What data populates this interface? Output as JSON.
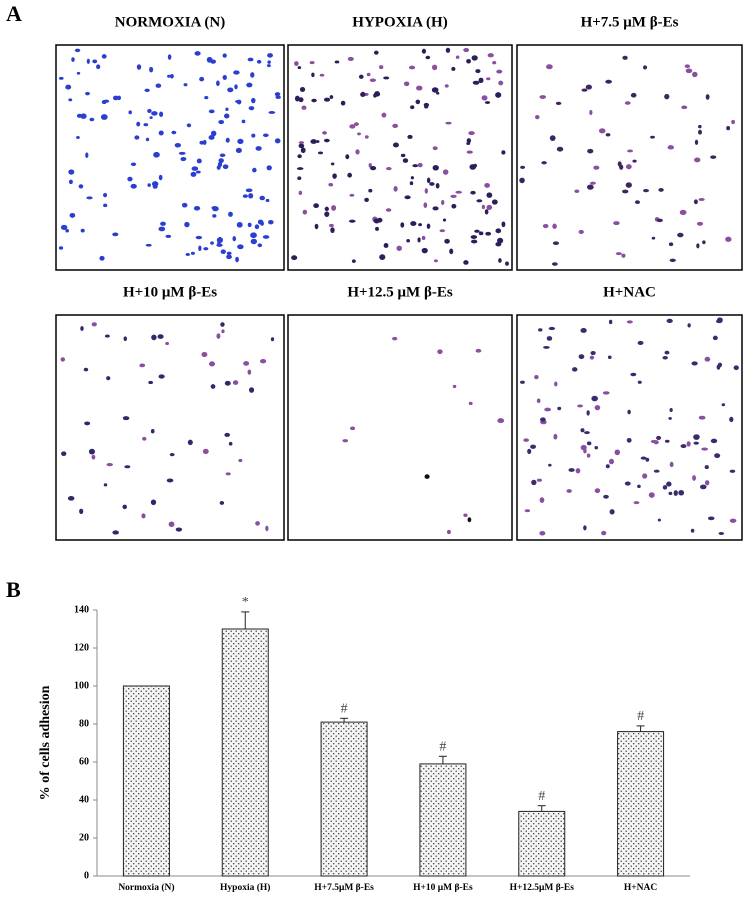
{
  "panel_a": {
    "label": "A",
    "images": [
      {
        "title": "NORMOXIA (N)"
      },
      {
        "title": "HYPOXIA (H)"
      },
      {
        "title": "H+7.5 μM β-Es"
      },
      {
        "title": "H+10 μM β-Es"
      },
      {
        "title": "H+12.5 μM β-Es"
      },
      {
        "title": "H+NAC"
      }
    ]
  },
  "panel_b": {
    "label": "B"
  },
  "chart_data": {
    "type": "bar",
    "y_label": "% of cells adhesion",
    "categories": [
      "Normoxia (N)",
      "Hypoxia (H)",
      "H+7.5μM β-Es",
      "H+10 μM β-Es",
      "H+12.5μM β-Es",
      "H+NAC"
    ],
    "values": [
      100,
      130,
      81,
      59,
      34,
      76
    ],
    "errors": [
      0,
      9,
      2,
      4,
      3,
      3
    ],
    "annotations": [
      null,
      "*",
      "#",
      "#",
      "#",
      "#"
    ],
    "ylim": [
      0,
      140
    ],
    "yticks": [
      0,
      20,
      40,
      60,
      80,
      100,
      120,
      140
    ],
    "grid": false
  }
}
